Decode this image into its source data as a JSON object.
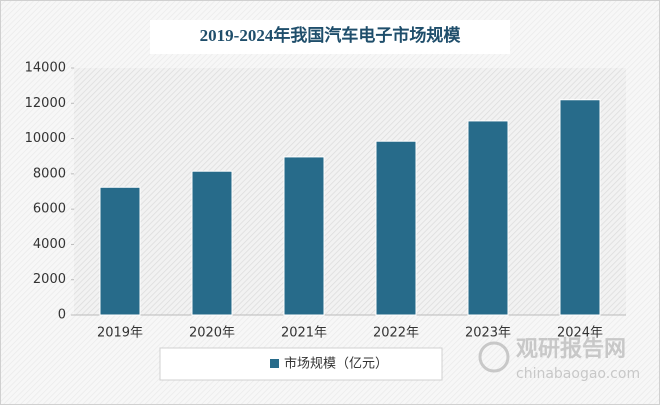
{
  "chart_data": {
    "type": "bar",
    "title": "2019-2024年我国汽车电子市场规模",
    "categories": [
      "2019年",
      "2020年",
      "2021年",
      "2022年",
      "2023年",
      "2024年"
    ],
    "series": [
      {
        "name": "市场规模（亿元）",
        "color": "#276b8a",
        "values": [
          7240,
          8150,
          8960,
          9850,
          11000,
          12200
        ]
      }
    ],
    "ylim": [
      0,
      14000
    ],
    "yticks": [
      0,
      2000,
      4000,
      6000,
      8000,
      10000,
      12000,
      14000
    ],
    "legend": "bottom"
  },
  "watermark": {
    "name": "观研报告网",
    "url": "chinabaogao.com"
  }
}
